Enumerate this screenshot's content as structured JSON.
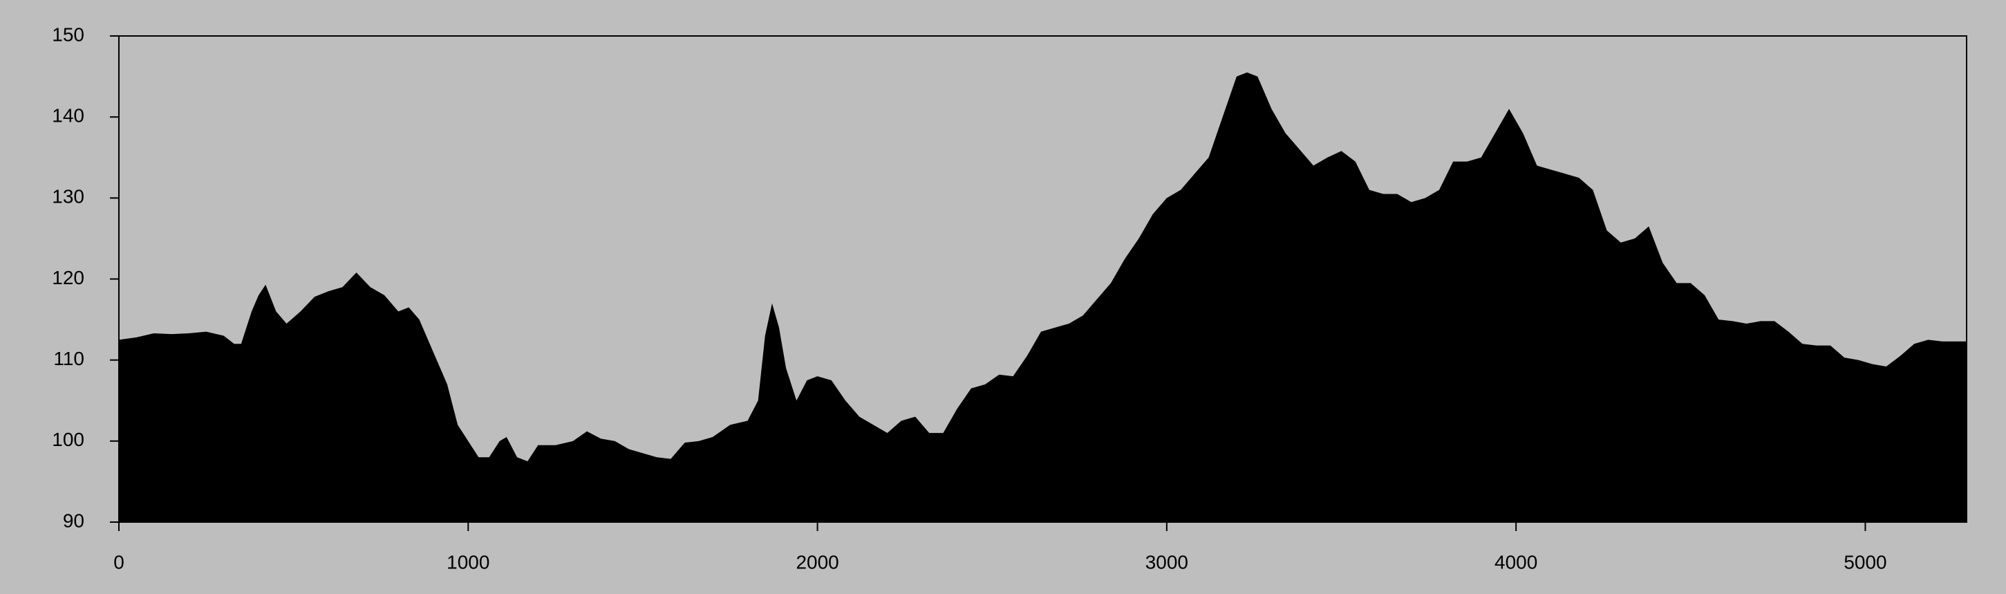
{
  "chart_data": {
    "type": "area",
    "color": "#000000",
    "background": "#bebebe",
    "x": [
      0,
      50,
      100,
      150,
      200,
      250,
      300,
      330,
      350,
      380,
      400,
      420,
      450,
      480,
      520,
      560,
      600,
      640,
      680,
      720,
      760,
      800,
      830,
      860,
      900,
      940,
      970,
      1000,
      1030,
      1060,
      1090,
      1110,
      1140,
      1170,
      1200,
      1250,
      1300,
      1340,
      1380,
      1420,
      1460,
      1500,
      1540,
      1580,
      1620,
      1660,
      1700,
      1750,
      1800,
      1830,
      1850,
      1870,
      1890,
      1910,
      1940,
      1970,
      2000,
      2040,
      2080,
      2120,
      2160,
      2200,
      2240,
      2280,
      2320,
      2360,
      2400,
      2440,
      2480,
      2520,
      2560,
      2600,
      2640,
      2680,
      2720,
      2760,
      2800,
      2840,
      2880,
      2920,
      2960,
      3000,
      3040,
      3080,
      3120,
      3160,
      3200,
      3230,
      3260,
      3300,
      3340,
      3380,
      3420,
      3460,
      3500,
      3540,
      3580,
      3620,
      3660,
      3700,
      3740,
      3780,
      3820,
      3860,
      3900,
      3940,
      3980,
      4020,
      4060,
      4100,
      4140,
      4180,
      4220,
      4260,
      4300,
      4340,
      4380,
      4420,
      4460,
      4500,
      4540,
      4580,
      4620,
      4660,
      4700,
      4740,
      4780,
      4820,
      4860,
      4900,
      4940,
      4980,
      5020,
      5060,
      5100,
      5140,
      5180,
      5220,
      5260,
      5290
    ],
    "values": [
      112.5,
      112.8,
      113.3,
      113.2,
      113.3,
      113.5,
      113,
      112,
      112,
      116,
      118,
      119.3,
      116,
      114.5,
      116,
      117.8,
      118.5,
      119,
      120.8,
      119,
      118,
      116,
      116.5,
      115,
      111,
      107,
      102,
      100,
      98,
      98,
      100,
      100.5,
      98,
      97.5,
      99.5,
      99.5,
      100,
      101.2,
      100.3,
      100,
      99,
      98.5,
      98,
      97.8,
      99.8,
      100,
      100.5,
      102,
      102.5,
      105,
      113,
      117,
      114,
      109,
      105,
      107.5,
      108,
      107.5,
      105,
      103,
      102,
      101,
      102.5,
      103,
      101,
      101,
      104,
      106.5,
      107,
      108.2,
      108,
      110.5,
      113.5,
      114,
      114.5,
      115.5,
      117.5,
      119.5,
      122.5,
      125,
      128,
      130,
      131,
      133,
      135,
      140,
      145,
      145.5,
      145,
      141,
      138,
      136,
      134,
      135,
      135.8,
      134.5,
      131,
      130.5,
      130.5,
      129.5,
      130,
      131,
      134.5,
      134.5,
      135,
      138,
      141,
      138,
      134,
      133.5,
      133,
      132.5,
      131,
      126,
      124.5,
      125,
      126.5,
      122,
      119.5,
      119.5,
      118,
      115,
      114.8,
      114.5,
      114.8,
      114.8,
      113.5,
      112,
      111.8,
      111.8,
      110.3,
      110,
      109.5,
      109.2,
      110.5,
      112,
      112.5,
      112.3,
      112.3,
      112.3
    ],
    "xlim": [
      0,
      5290
    ],
    "ylim": [
      90,
      150
    ],
    "xticks": [
      0,
      1000,
      2000,
      3000,
      4000,
      5000
    ],
    "yticks": [
      90,
      100,
      110,
      120,
      130,
      140,
      150
    ]
  }
}
